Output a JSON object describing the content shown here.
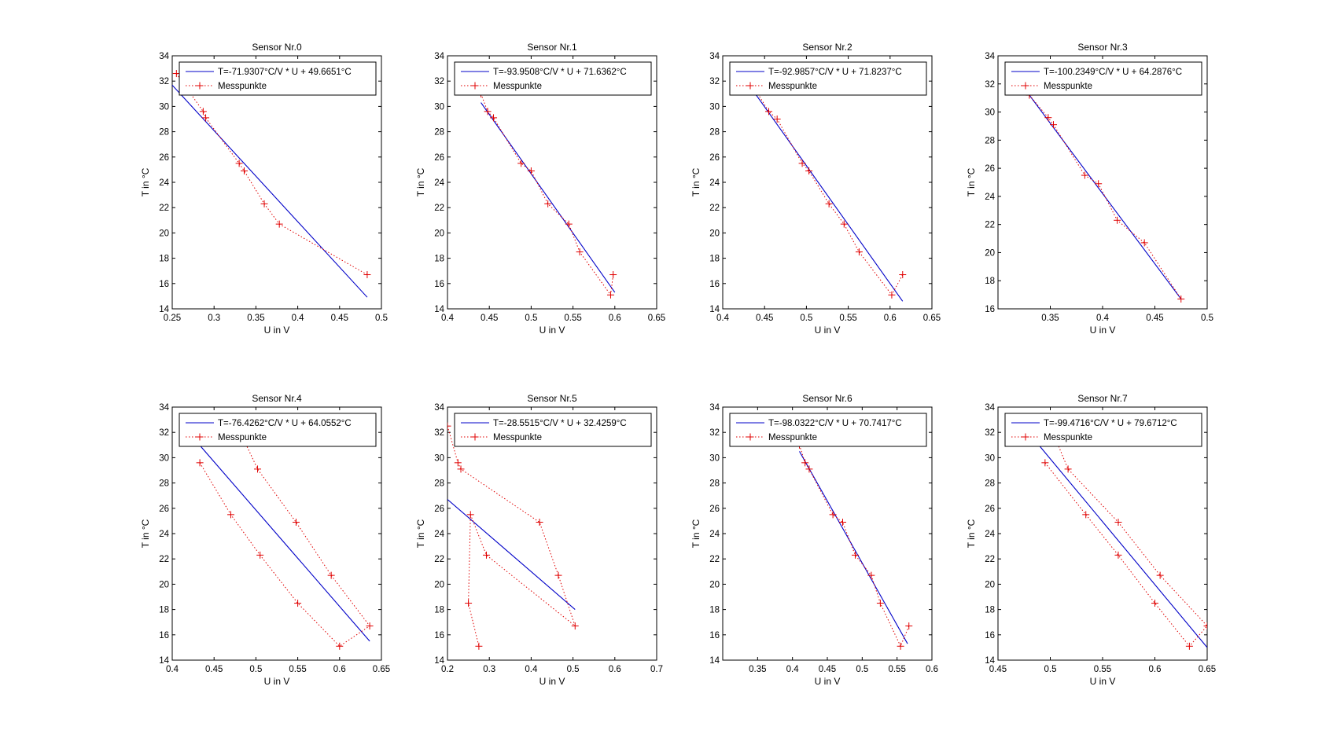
{
  "colors": {
    "fit_line": "#0000c8",
    "measurements": "#e00000",
    "axes": "#000000"
  },
  "chart_data": [
    {
      "type": "line",
      "title": "Sensor Nr.0",
      "xlabel": "U in V",
      "ylabel": "T in °C",
      "xlim": [
        0.25,
        0.5
      ],
      "ylim": [
        14,
        34
      ],
      "xticks": [
        "0.25",
        "0.3",
        "0.35",
        "0.4",
        "0.45",
        "0.5"
      ],
      "yticks": [
        "14",
        "16",
        "18",
        "20",
        "22",
        "24",
        "26",
        "28",
        "30",
        "32",
        "34"
      ],
      "series": [
        {
          "name": "T=-71.9307°C/V * U + 49.6651°C",
          "style": "solid",
          "x": [
            0.25,
            0.483
          ],
          "y": [
            31.68,
            14.92
          ]
        },
        {
          "name": "Messpunkte",
          "style": "dotted-plus",
          "x": [
            0.255,
            0.287,
            0.29,
            0.33,
            0.336,
            0.36,
            0.378,
            0.483
          ],
          "y": [
            32.6,
            29.6,
            29.1,
            25.5,
            24.9,
            22.3,
            20.7,
            16.7
          ]
        }
      ],
      "legend": "top-right",
      "grid": false
    },
    {
      "type": "line",
      "title": "Sensor Nr.1",
      "xlabel": "U in V",
      "ylabel": "T in °C",
      "xlim": [
        0.4,
        0.65
      ],
      "ylim": [
        14,
        34
      ],
      "xticks": [
        "0.4",
        "0.45",
        "0.5",
        "0.55",
        "0.6",
        "0.65"
      ],
      "yticks": [
        "14",
        "16",
        "18",
        "20",
        "22",
        "24",
        "26",
        "28",
        "30",
        "32",
        "34"
      ],
      "series": [
        {
          "name": "T=-93.9508°C/V * U + 71.6362°C",
          "style": "solid",
          "x": [
            0.44,
            0.6
          ],
          "y": [
            30.3,
            15.3
          ]
        },
        {
          "name": "Messpunkte",
          "style": "dotted-plus",
          "x": [
            0.44,
            0.448,
            0.455,
            0.488,
            0.5,
            0.52,
            0.545,
            0.558,
            0.595,
            0.598
          ],
          "y": [
            31.0,
            29.6,
            29.1,
            25.5,
            24.9,
            22.3,
            20.7,
            18.5,
            15.1,
            16.7
          ]
        }
      ],
      "legend": "top-right",
      "grid": false
    },
    {
      "type": "line",
      "title": "Sensor Nr.2",
      "xlabel": "U in V",
      "ylabel": "T in °C",
      "xlim": [
        0.4,
        0.65
      ],
      "ylim": [
        14,
        34
      ],
      "xticks": [
        "0.4",
        "0.45",
        "0.5",
        "0.55",
        "0.6",
        "0.65"
      ],
      "yticks": [
        "14",
        "16",
        "18",
        "20",
        "22",
        "24",
        "26",
        "28",
        "30",
        "32",
        "34"
      ],
      "series": [
        {
          "name": "T=-92.9857°C/V * U + 71.8237°C",
          "style": "solid",
          "x": [
            0.44,
            0.615
          ],
          "y": [
            30.9,
            14.6
          ]
        },
        {
          "name": "Messpunkte",
          "style": "dotted-plus",
          "x": [
            0.44,
            0.455,
            0.465,
            0.495,
            0.503,
            0.527,
            0.545,
            0.563,
            0.602,
            0.615
          ],
          "y": [
            31.2,
            29.6,
            29.0,
            25.5,
            24.9,
            22.3,
            20.7,
            18.5,
            15.1,
            16.7
          ]
        }
      ],
      "legend": "top-right",
      "grid": false
    },
    {
      "type": "line",
      "title": "Sensor Nr.3",
      "xlabel": "U in V",
      "ylabel": "T in °C",
      "xlim": [
        0.3,
        0.5
      ],
      "ylim": [
        16,
        34
      ],
      "xticks": [
        "0.35",
        "0.4",
        "0.45",
        "0.5"
      ],
      "yticks": [
        "16",
        "18",
        "20",
        "22",
        "24",
        "26",
        "28",
        "30",
        "32",
        "34"
      ],
      "series": [
        {
          "name": "T=-100.2349°C/V * U + 64.2876°C",
          "style": "solid",
          "x": [
            0.33,
            0.475
          ],
          "y": [
            31.2,
            16.7
          ]
        },
        {
          "name": "Messpunkte",
          "style": "dotted-plus",
          "x": [
            0.33,
            0.348,
            0.353,
            0.383,
            0.396,
            0.414,
            0.44,
            0.475
          ],
          "y": [
            31.2,
            29.6,
            29.1,
            25.5,
            24.9,
            22.3,
            20.7,
            16.7
          ]
        }
      ],
      "legend": "top-right",
      "grid": false
    },
    {
      "type": "line",
      "title": "Sensor Nr.4",
      "xlabel": "U in V",
      "ylabel": "T in °C",
      "xlim": [
        0.4,
        0.65
      ],
      "ylim": [
        14,
        34
      ],
      "xticks": [
        "0.4",
        "0.45",
        "0.5",
        "0.55",
        "0.6",
        "0.65"
      ],
      "yticks": [
        "14",
        "16",
        "18",
        "20",
        "22",
        "24",
        "26",
        "28",
        "30",
        "32",
        "34"
      ],
      "series": [
        {
          "name": "T=-76.4262°C/V * U + 64.0552°C",
          "style": "solid",
          "x": [
            0.43,
            0.636
          ],
          "y": [
            31.2,
            15.5
          ]
        },
        {
          "name": "Messpunkte",
          "style": "dotted-plus",
          "x": [
            0.433,
            0.47,
            0.505,
            0.55,
            0.6,
            0.636,
            0.59,
            0.548,
            0.502,
            0.485
          ],
          "y": [
            29.6,
            25.5,
            22.3,
            18.5,
            15.1,
            16.7,
            20.7,
            24.9,
            29.1,
            31.5
          ]
        }
      ],
      "legend": "top-right",
      "grid": false
    },
    {
      "type": "line",
      "title": "Sensor Nr.5",
      "xlabel": "U in V",
      "ylabel": "T in °C",
      "xlim": [
        0.2,
        0.7
      ],
      "ylim": [
        14,
        34
      ],
      "xticks": [
        "0.2",
        "0.3",
        "0.4",
        "0.5",
        "0.6",
        "0.7"
      ],
      "yticks": [
        "14",
        "16",
        "18",
        "20",
        "22",
        "24",
        "26",
        "28",
        "30",
        "32",
        "34"
      ],
      "series": [
        {
          "name": "T=-28.5515°C/V * U + 32.4259°C",
          "style": "solid",
          "x": [
            0.2,
            0.505
          ],
          "y": [
            26.7,
            18.0
          ]
        },
        {
          "name": "Messpunkte",
          "style": "dotted-plus",
          "x": [
            0.2,
            0.225,
            0.232,
            0.42,
            0.465,
            0.505,
            0.293,
            0.255,
            0.25,
            0.275
          ],
          "y": [
            32.5,
            29.6,
            29.1,
            24.9,
            20.7,
            16.7,
            22.3,
            25.5,
            18.5,
            15.1
          ]
        }
      ],
      "legend": "top-right",
      "grid": false
    },
    {
      "type": "line",
      "title": "Sensor Nr.6",
      "xlabel": "U in V",
      "ylabel": "T in °C",
      "xlim": [
        0.3,
        0.6
      ],
      "ylim": [
        14,
        34
      ],
      "xticks": [
        "0.35",
        "0.4",
        "0.45",
        "0.5",
        "0.55",
        "0.6"
      ],
      "yticks": [
        "14",
        "16",
        "18",
        "20",
        "22",
        "24",
        "26",
        "28",
        "30",
        "32",
        "34"
      ],
      "series": [
        {
          "name": "T=-98.0322°C/V * U + 70.7417°C",
          "style": "solid",
          "x": [
            0.41,
            0.565
          ],
          "y": [
            30.5,
            15.3
          ]
        },
        {
          "name": "Messpunkte",
          "style": "dotted-plus",
          "x": [
            0.41,
            0.418,
            0.424,
            0.458,
            0.472,
            0.49,
            0.513,
            0.526,
            0.555,
            0.567
          ],
          "y": [
            31.0,
            29.6,
            29.1,
            25.5,
            24.9,
            22.3,
            20.7,
            18.5,
            15.1,
            16.7
          ]
        }
      ],
      "legend": "top-right",
      "grid": false
    },
    {
      "type": "line",
      "title": "Sensor Nr.7",
      "xlabel": "U in V",
      "ylabel": "T in °C",
      "xlim": [
        0.45,
        0.65
      ],
      "ylim": [
        14,
        34
      ],
      "xticks": [
        "0.45",
        "0.5",
        "0.55",
        "0.6",
        "0.65"
      ],
      "yticks": [
        "14",
        "16",
        "18",
        "20",
        "22",
        "24",
        "26",
        "28",
        "30",
        "32",
        "34"
      ],
      "series": [
        {
          "name": "T=-99.4716°C/V * U + 79.6712°C",
          "style": "solid",
          "x": [
            0.485,
            0.65
          ],
          "y": [
            31.4,
            15.0
          ]
        },
        {
          "name": "Messpunkte",
          "style": "dotted-plus",
          "x": [
            0.495,
            0.534,
            0.565,
            0.6,
            0.633,
            0.65,
            0.605,
            0.565,
            0.517,
            0.505
          ],
          "y": [
            29.6,
            25.5,
            22.3,
            18.5,
            15.1,
            16.7,
            20.7,
            24.9,
            29.1,
            31.5
          ]
        }
      ],
      "legend": "top-right",
      "grid": false
    }
  ]
}
